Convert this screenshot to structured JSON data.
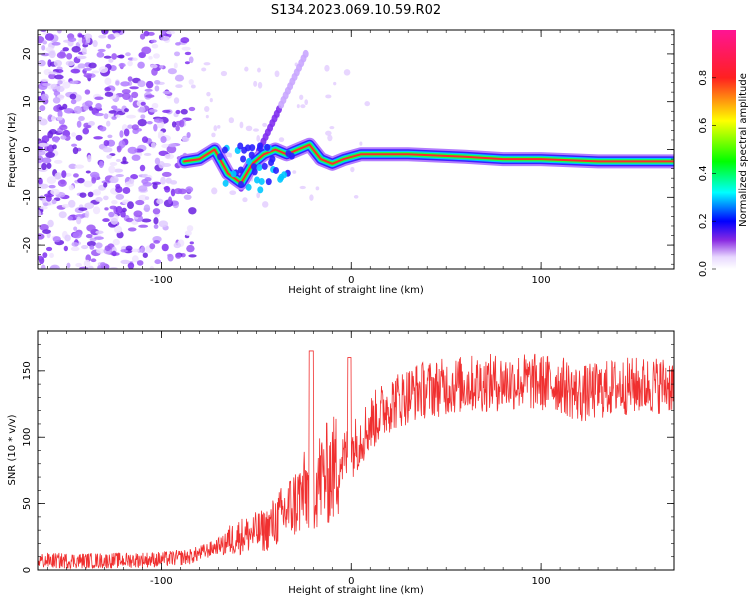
{
  "title": "S134.2023.069.10.59.R02",
  "chart_data": [
    {
      "type": "heatmap",
      "xlabel": "Height of straight line (km)",
      "ylabel": "Frequency (Hz)",
      "xlim": [
        -165,
        170
      ],
      "ylim": [
        -25,
        25
      ],
      "x_ticks": [
        -100,
        0,
        100
      ],
      "y_ticks": [
        -20,
        -10,
        0,
        10,
        20
      ],
      "colorbar": {
        "label": "Normalized spectral amplitude",
        "range": [
          0,
          1
        ],
        "ticks": [
          "0.0",
          "0.2",
          "0.4",
          "0.6",
          "0.8"
        ]
      },
      "signal_trace": [
        {
          "x": -88,
          "y": -2.5
        },
        {
          "x": -80,
          "y": -2
        },
        {
          "x": -72,
          "y": 0
        },
        {
          "x": -65,
          "y": -5
        },
        {
          "x": -58,
          "y": -7
        },
        {
          "x": -52,
          "y": -3
        },
        {
          "x": -46,
          "y": -1
        },
        {
          "x": -40,
          "y": 0
        },
        {
          "x": -34,
          "y": -1
        },
        {
          "x": -28,
          "y": 0
        },
        {
          "x": -22,
          "y": 1
        },
        {
          "x": -16,
          "y": -2
        },
        {
          "x": -10,
          "y": -3
        },
        {
          "x": -4,
          "y": -2
        },
        {
          "x": 5,
          "y": -1
        },
        {
          "x": 30,
          "y": -1
        },
        {
          "x": 60,
          "y": -1.5
        },
        {
          "x": 80,
          "y": -2
        },
        {
          "x": 100,
          "y": -2
        },
        {
          "x": 130,
          "y": -2.5
        },
        {
          "x": 170,
          "y": -2.5
        }
      ]
    },
    {
      "type": "line",
      "xlabel": "Height of straight line (km)",
      "ylabel": "SNR (10 * v/v)",
      "xlim": [
        -165,
        170
      ],
      "ylim": [
        0,
        180
      ],
      "x_ticks": [
        -100,
        0,
        100
      ],
      "y_ticks": [
        0,
        50,
        100,
        150
      ],
      "color": "#f03030",
      "envelope": [
        {
          "x": -165,
          "y": 7
        },
        {
          "x": -130,
          "y": 7
        },
        {
          "x": -100,
          "y": 8
        },
        {
          "x": -85,
          "y": 10
        },
        {
          "x": -75,
          "y": 15
        },
        {
          "x": -60,
          "y": 25
        },
        {
          "x": -45,
          "y": 30
        },
        {
          "x": -30,
          "y": 50
        },
        {
          "x": -20,
          "y": 65
        },
        {
          "x": -10,
          "y": 75
        },
        {
          "x": 0,
          "y": 90
        },
        {
          "x": 10,
          "y": 110
        },
        {
          "x": 20,
          "y": 125
        },
        {
          "x": 35,
          "y": 135
        },
        {
          "x": 60,
          "y": 140
        },
        {
          "x": 90,
          "y": 142
        },
        {
          "x": 110,
          "y": 140
        },
        {
          "x": 120,
          "y": 132
        },
        {
          "x": 140,
          "y": 138
        },
        {
          "x": 170,
          "y": 140
        }
      ]
    }
  ]
}
